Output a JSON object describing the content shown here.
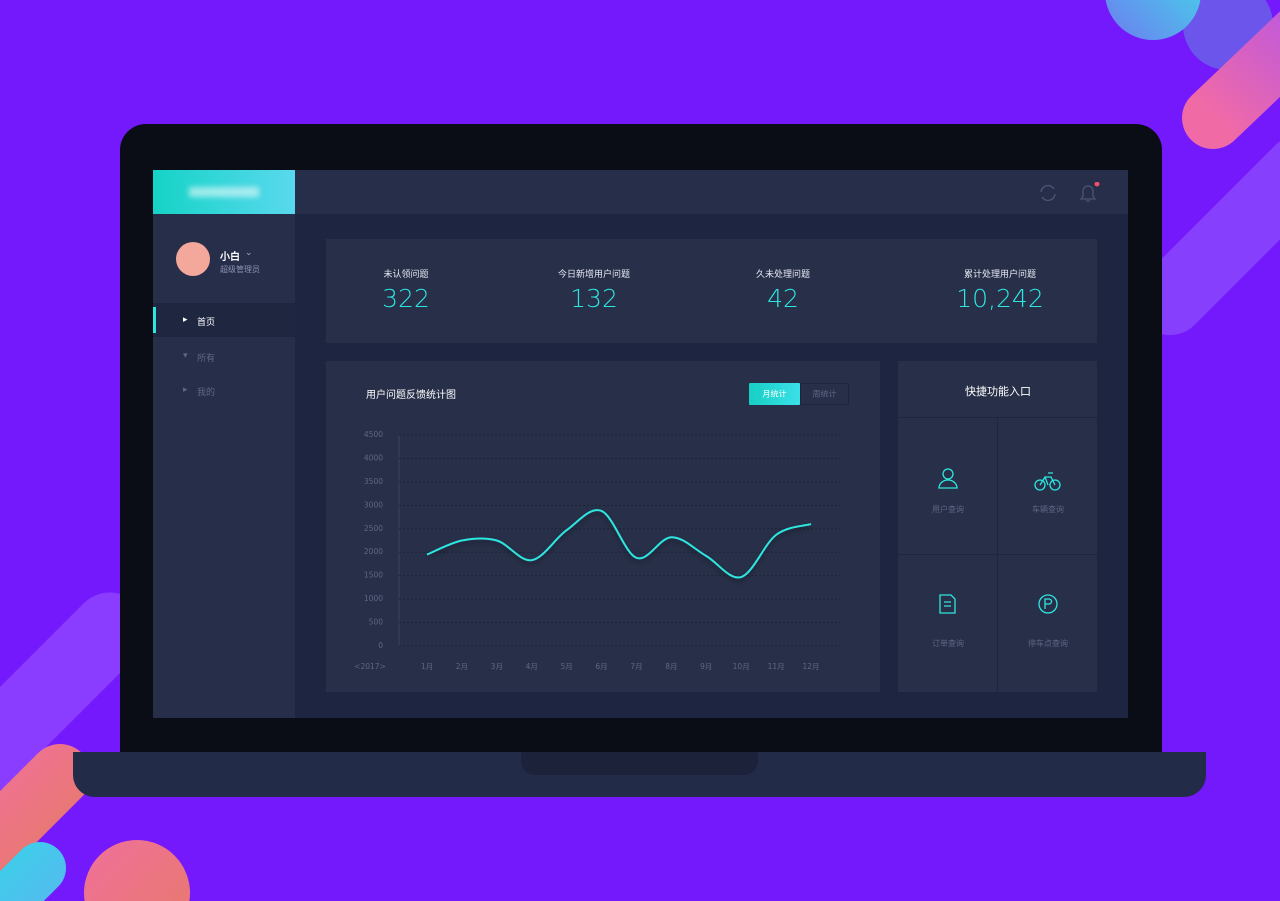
{
  "sidebar": {
    "user": {
      "name": "小白",
      "role": "超级管理员"
    },
    "menu": [
      "首页",
      "所有",
      "我的"
    ]
  },
  "stats": [
    {
      "label": "未认领问题",
      "value": "322"
    },
    {
      "label": "今日新增用户问题",
      "value": "132"
    },
    {
      "label": "久未处理问题",
      "value": "42"
    },
    {
      "label": "累计处理用户问题",
      "value": "10,242"
    }
  ],
  "chart_data": {
    "type": "line",
    "title": "用户问题反馈统计图",
    "tabs": [
      "月统计",
      "周统计"
    ],
    "x_label": "<2017>",
    "categories": [
      "1月",
      "2月",
      "3月",
      "4月",
      "5月",
      "6月",
      "7月",
      "8月",
      "9月",
      "10月",
      "11月",
      "12月"
    ],
    "values": [
      1950,
      2250,
      2250,
      1830,
      2470,
      2880,
      1880,
      2320,
      1920,
      1470,
      2370,
      2600
    ],
    "color": "#2ee6e0",
    "ylim": [
      0,
      4500
    ],
    "yticks": [
      0,
      500,
      1000,
      1500,
      2000,
      2500,
      3000,
      3500,
      4000,
      4500
    ],
    "grid": true
  },
  "shortcuts": {
    "title": "快捷功能入口",
    "items": [
      "用户查询",
      "车辆查询",
      "订单查询",
      "停车点查询"
    ]
  }
}
